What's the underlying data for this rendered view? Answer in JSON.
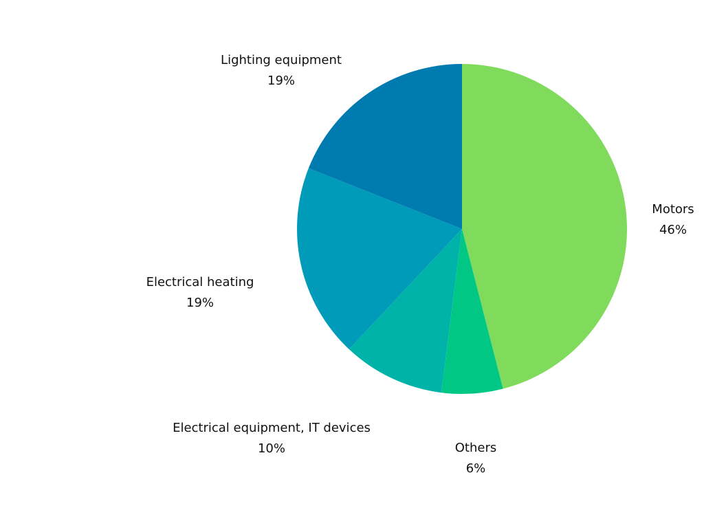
{
  "chart_data": {
    "type": "pie",
    "start_angle": "top",
    "direction": "clockwise",
    "slices": [
      {
        "label": "Motors",
        "value": 46,
        "value_label": "46%",
        "color": "#80DB5C"
      },
      {
        "label": "Others",
        "value": 6,
        "value_label": "6%",
        "color": "#00C884"
      },
      {
        "label": "Electrical equipment, IT devices",
        "value": 10,
        "value_label": "10%",
        "color": "#00B3A8"
      },
      {
        "label": "Electrical heating",
        "value": 19,
        "value_label": "19%",
        "color": "#009BB9"
      },
      {
        "label": "Lighting equipment",
        "value": 19,
        "value_label": "19%",
        "color": "#007BB0"
      }
    ]
  }
}
